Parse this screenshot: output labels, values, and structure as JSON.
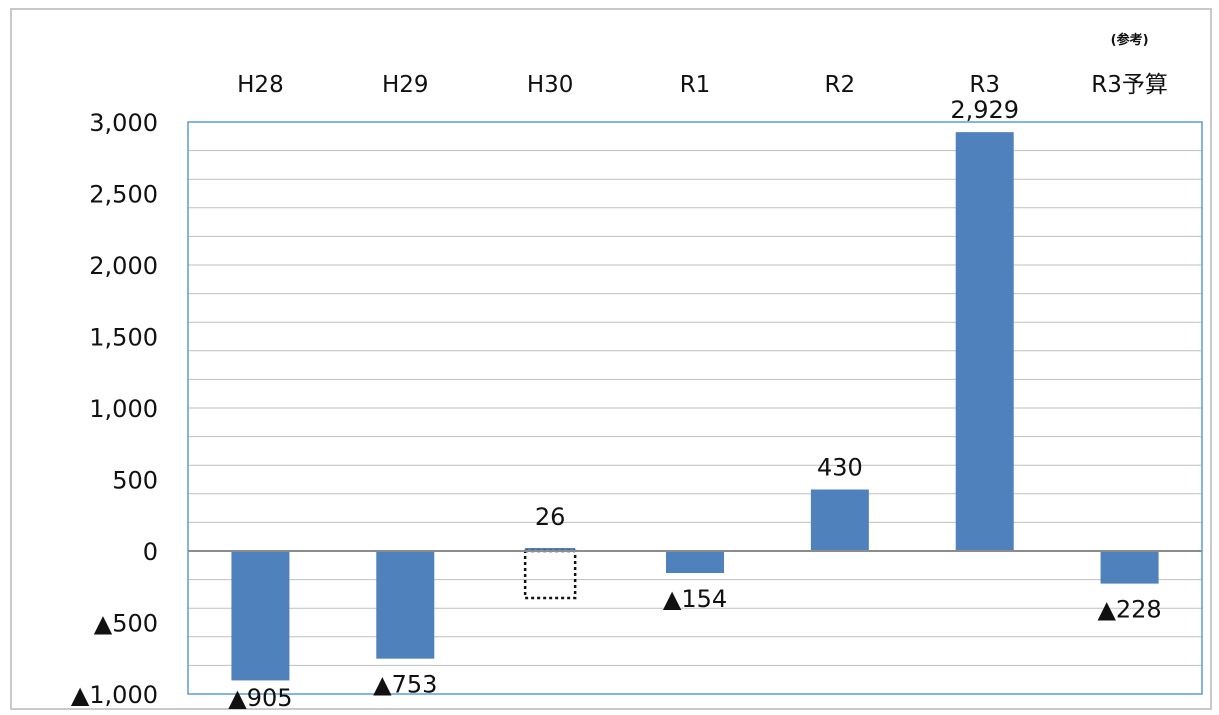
{
  "chart_data": {
    "type": "bar",
    "categories": [
      "H28",
      "H29",
      "H30",
      "R1",
      "R2",
      "R3",
      "R3予算"
    ],
    "category_note": {
      "index": 6,
      "text": "(参考)"
    },
    "values": [
      -905,
      -753,
      26,
      -154,
      430,
      2929,
      -228
    ],
    "data_labels": [
      "▲905",
      "▲753",
      "26",
      "▲154",
      "430",
      "2,929",
      "▲228"
    ],
    "dotted_indices": [
      2
    ],
    "y_ticks": [
      3000,
      2500,
      2000,
      1500,
      1000,
      500,
      0,
      -500,
      -1000
    ],
    "y_tick_labels": [
      "3,000",
      "2,500",
      "2,000",
      "1,500",
      "1,000",
      "500",
      "0",
      "▲500",
      "▲1,000"
    ],
    "ylim": [
      -1000,
      3000
    ],
    "minor_step": 200,
    "grid": true,
    "title": "",
    "xlabel": "",
    "ylabel": "",
    "bar_color": "#4f81bd",
    "grid_color": "#bfbfbf",
    "axis_color": "#5b9bd5",
    "zero_line_color": "#8c8c8c"
  }
}
